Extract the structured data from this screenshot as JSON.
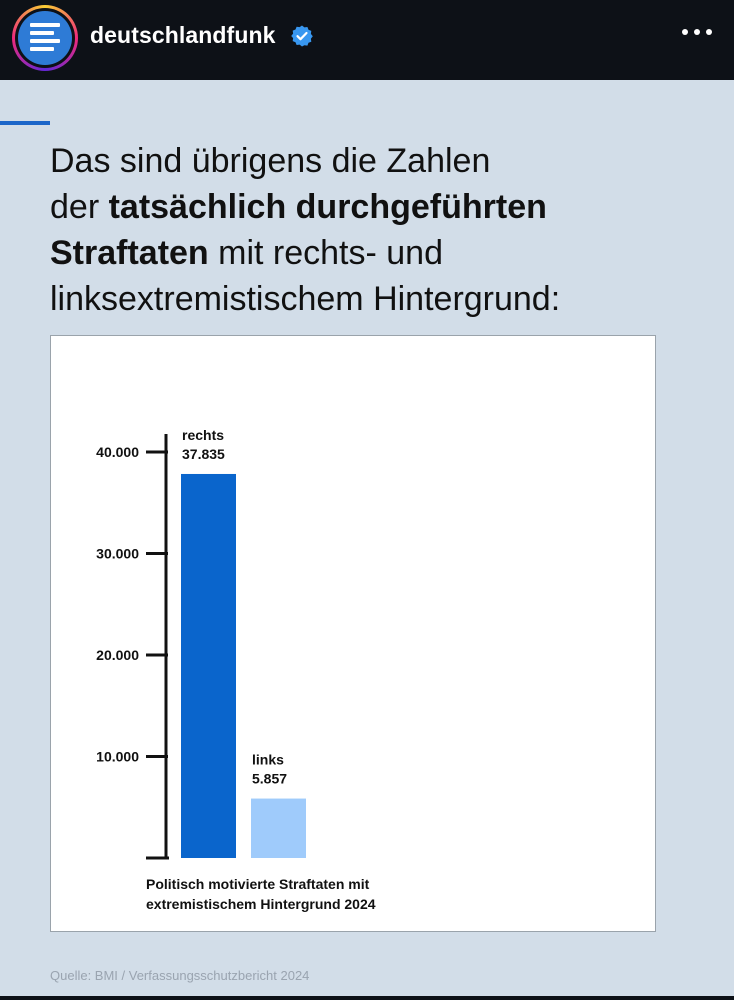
{
  "header": {
    "account_name": "deutschlandfunk",
    "verified_icon": "verified-badge-icon",
    "more_icon": "more-options-icon"
  },
  "post": {
    "headline_parts": [
      {
        "text": "Das sind übrigens die Zahlen",
        "bold": false,
        "break": true
      },
      {
        "text": "der ",
        "bold": false
      },
      {
        "text": "tatsächlich durchgeführten",
        "bold": true,
        "break": true
      },
      {
        "text": "Straftaten",
        "bold": true
      },
      {
        "text": " mit rechts- und",
        "bold": false,
        "break": true
      },
      {
        "text": "linksextremistischem Hintergrund:",
        "bold": false
      }
    ],
    "source": "Quelle: BMI / Verfassungsschutzbericht 2024"
  },
  "colors": {
    "background": "#d2dde8",
    "rechts": "#0a65cc",
    "links": "#9fcbfb",
    "accent": "#1c66c9"
  },
  "chart_data": {
    "type": "bar",
    "categories": [
      "rechts",
      "links"
    ],
    "values": [
      37835,
      5857
    ],
    "value_labels": [
      "37.835",
      "5.857"
    ],
    "ylim": [
      0,
      40000
    ],
    "yticks": [
      10000,
      20000,
      30000,
      40000
    ],
    "ytick_labels": [
      "10.000",
      "20.000",
      "30.000",
      "40.000"
    ],
    "xlabel": "Politisch motivierte Straftaten mit extremistischem Hintergrund 2024",
    "xlabel_lines": [
      "Politisch motivierte Straftaten mit",
      "extremistischem Hintergrund 2024"
    ],
    "grid": false
  }
}
